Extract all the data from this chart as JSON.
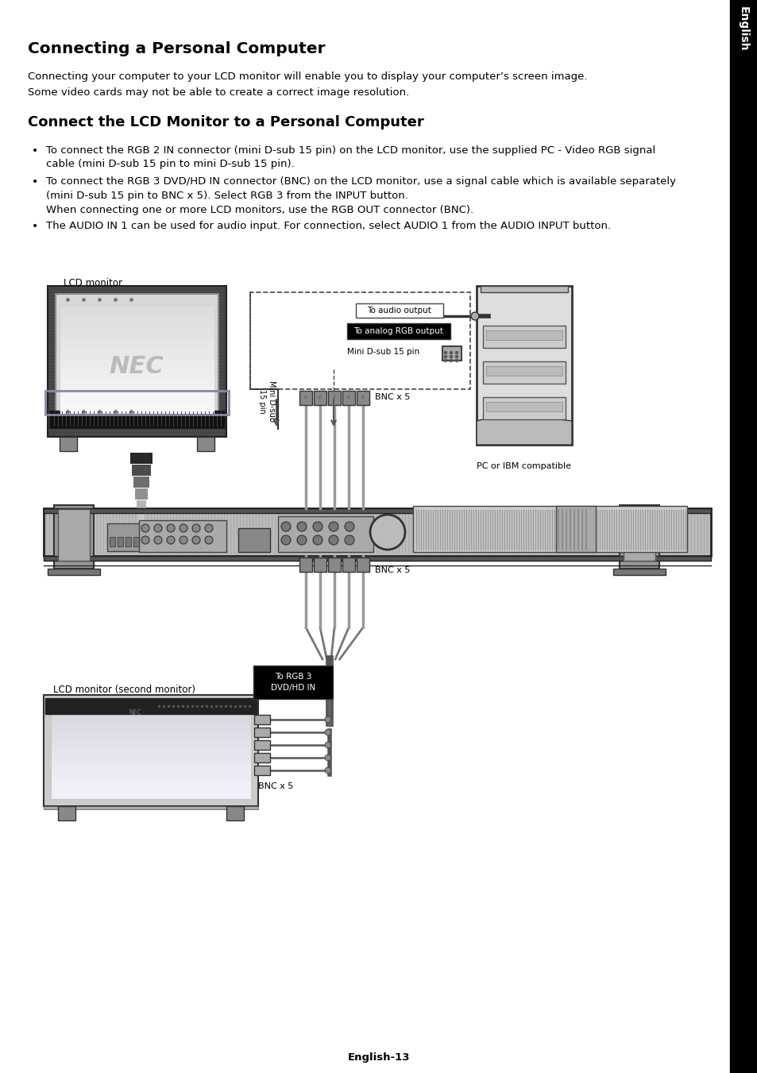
{
  "page_title": "Connecting a Personal Computer",
  "section_title": "Connect the LCD Monitor to a Personal Computer",
  "intro_line1": "Connecting your computer to your LCD monitor will enable you to display your computer’s screen image.",
  "intro_line2": "Some video cards may not be able to create a correct image resolution.",
  "bullet1_line1": "To connect the RGB 2 IN connector (mini D-sub 15 pin) on the LCD monitor, use the supplied PC - Video RGB signal",
  "bullet1_line2": "cable (mini D-sub 15 pin to mini D-sub 15 pin).",
  "bullet2_line1": "To connect the RGB 3 DVD/HD IN connector (BNC) on the LCD monitor, use a signal cable which is available separately",
  "bullet2_line2": "(mini D-sub 15 pin to BNC x 5). Select RGB 3 from the INPUT button.",
  "bullet2_line3": "When connecting one or more LCD monitors, use the RGB OUT connector (BNC).",
  "bullet3": "The AUDIO IN 1 can be used for audio input. For connection, select AUDIO 1 from the AUDIO INPUT button.",
  "label_lcd": "LCD monitor",
  "label_audio_out": "To audio output",
  "label_rgb_out": "To analog RGB output",
  "label_minidsub": "Mini D-sub 15 pin",
  "label_minidsub_v": "Mini D-sub\n15 pin",
  "label_bnc_top": "BNC x 5",
  "label_pc": "PC or IBM compatible",
  "label_bnc_mid": "BNC x 5",
  "label_rgb3": "To RGB 3\nDVD/HD IN",
  "label_bnc_bot": "BNC x 5",
  "label_lcd2": "LCD monitor (second monitor)",
  "footer": "English-13",
  "sidebar_text": "English",
  "bg_color": "#ffffff",
  "text_color": "#000000",
  "sidebar_bg": "#000000",
  "sidebar_fg": "#ffffff",
  "gray_dark": "#333333",
  "gray_med": "#888888",
  "gray_light": "#cccccc",
  "gray_panel": "#aaaaaa"
}
